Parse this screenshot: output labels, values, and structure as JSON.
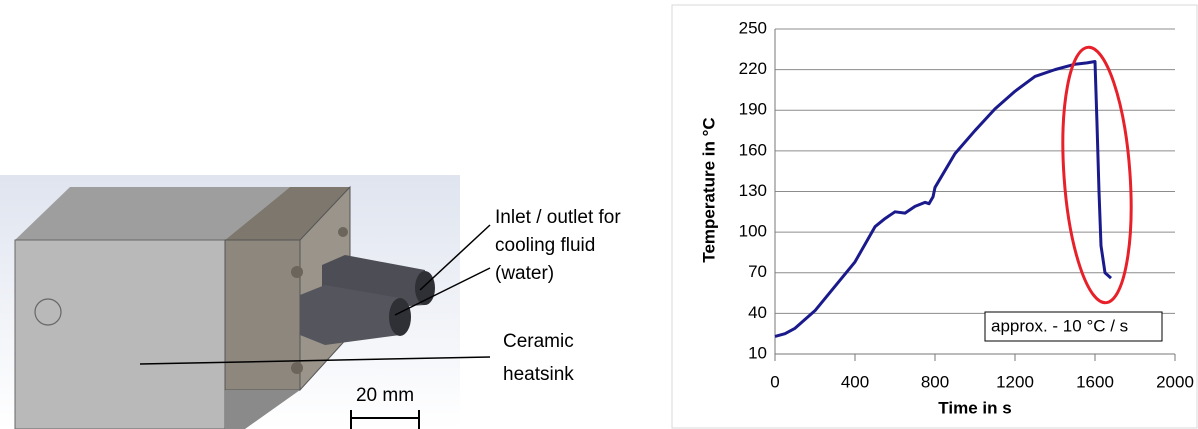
{
  "illustration": {
    "inlet_label": [
      "Inlet / outlet for",
      "cooling fluid",
      "(water)"
    ],
    "heatsink_label": [
      "Ceramic",
      "heatsink"
    ],
    "scale_bar": "20 mm"
  },
  "chart_data": {
    "type": "line",
    "x_label": "Time in s",
    "y_label": "Temperature in °C",
    "annotation": "approx. - 10 °C / s",
    "xlim": [
      0,
      2000
    ],
    "xticks": [
      0,
      400,
      800,
      1200,
      1600,
      2000
    ],
    "ylim": [
      10,
      250
    ],
    "yticks": [
      10,
      40,
      70,
      100,
      130,
      160,
      190,
      220,
      250
    ],
    "grid": true,
    "series": [
      {
        "color": "#1a1a8c",
        "x": [
          0,
          50,
          100,
          200,
          300,
          400,
          500,
          550,
          600,
          650,
          700,
          750,
          770,
          790,
          800,
          900,
          1000,
          1100,
          1200,
          1300,
          1400,
          1500,
          1560,
          1600,
          1610,
          1620,
          1630,
          1650,
          1680
        ],
        "values": [
          23,
          25,
          29,
          42,
          60,
          78,
          104,
          110,
          115,
          114,
          119,
          122,
          121,
          126,
          133,
          158,
          175,
          191,
          204,
          215,
          220,
          224,
          225,
          226,
          180,
          130,
          90,
          70,
          66
        ]
      }
    ]
  }
}
